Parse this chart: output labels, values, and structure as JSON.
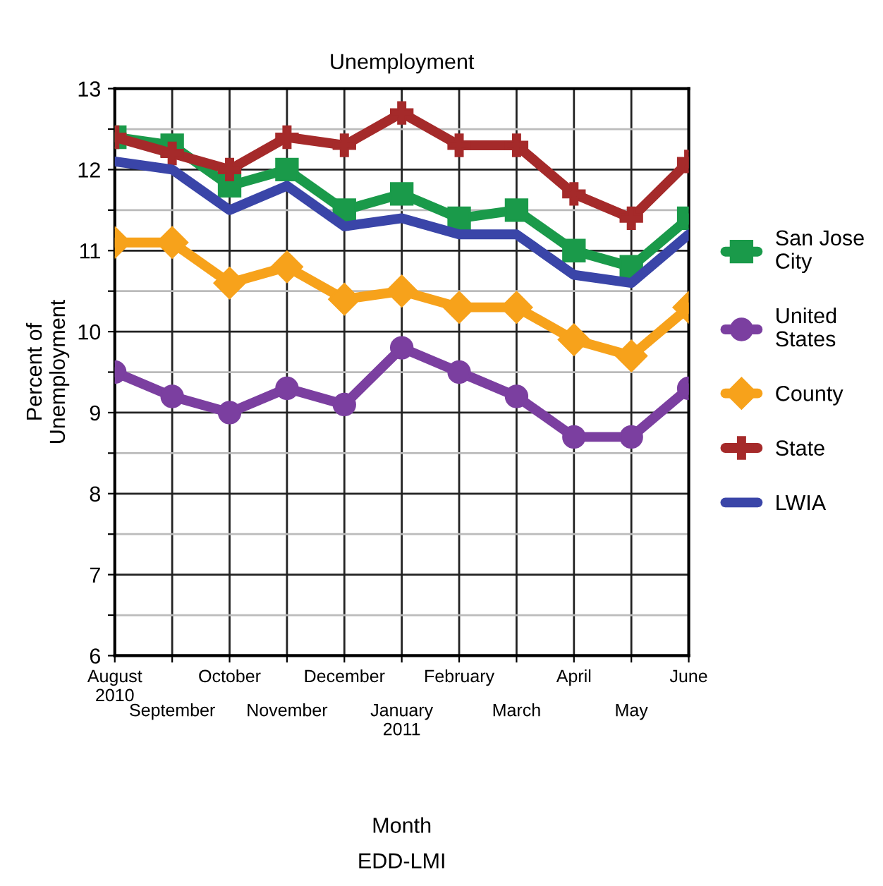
{
  "chart_data": {
    "type": "line",
    "title": "Unemployment",
    "xlabel": "Month",
    "ylabel": "Percent of\nUnemployment",
    "categories": [
      "August\n2010",
      "September",
      "October",
      "November",
      "December",
      "January\n2011",
      "February",
      "March",
      "April",
      "May",
      "June"
    ],
    "series": [
      {
        "name": "San Jose\nCity",
        "color": "#1a9a4a",
        "marker": "square",
        "values": [
          12.4,
          12.3,
          11.8,
          12.0,
          11.5,
          11.7,
          11.4,
          11.5,
          11.0,
          10.8,
          11.4
        ]
      },
      {
        "name": "United\nStates",
        "color": "#7b3fa0",
        "marker": "circle",
        "values": [
          9.5,
          9.2,
          9.0,
          9.3,
          9.1,
          9.8,
          9.5,
          9.2,
          8.7,
          8.7,
          9.3
        ]
      },
      {
        "name": "County",
        "color": "#f7a21b",
        "marker": "diamond",
        "values": [
          11.1,
          11.1,
          10.6,
          10.8,
          10.4,
          10.5,
          10.3,
          10.3,
          9.9,
          9.7,
          10.3
        ]
      },
      {
        "name": "State",
        "color": "#a52a2a",
        "marker": "cross",
        "values": [
          12.4,
          12.2,
          12.0,
          12.4,
          12.3,
          12.7,
          12.3,
          12.3,
          11.7,
          11.4,
          12.1
        ]
      },
      {
        "name": "LWIA",
        "color": "#3a45a8",
        "marker": "none",
        "values": [
          12.1,
          12.0,
          11.5,
          11.8,
          11.3,
          11.4,
          11.2,
          11.2,
          10.7,
          10.6,
          11.2
        ]
      }
    ],
    "ylim": [
      6,
      13
    ],
    "yticks": [
      6,
      {
        "value": 6.5,
        "label": null
      },
      7,
      {
        "value": 7.5,
        "label": null
      },
      8,
      {
        "value": 8.5,
        "label": null
      },
      9,
      {
        "value": 9.5,
        "label": null
      },
      10,
      {
        "value": 10.5,
        "label": null
      },
      11,
      {
        "value": 11.5,
        "label": null
      },
      12,
      {
        "value": 12.5,
        "label": null
      },
      13
    ],
    "grid": true,
    "legend": "right",
    "line_style": "solid",
    "annotations": [
      "EDD-LMI"
    ]
  }
}
